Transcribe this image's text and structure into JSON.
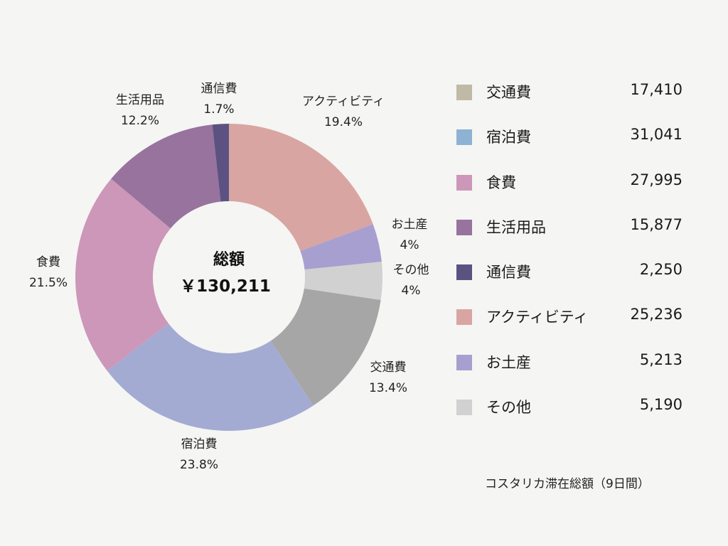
{
  "chart_data": {
    "type": "pie",
    "donut": true,
    "center_title": "総額",
    "center_total": "￥130,211",
    "categories": [
      "交通費",
      "宿泊費",
      "食費",
      "生活用品",
      "通信費",
      "アクティビティ",
      "お土産",
      "その他"
    ],
    "values": [
      17410,
      31041,
      27995,
      15877,
      2250,
      25236,
      5213,
      5190
    ],
    "value_labels": [
      "17,410",
      "31,041",
      "27,995",
      "15,877",
      "2,250",
      "25,236",
      "5,213",
      "5,190"
    ],
    "percent_labels": [
      "13.4%",
      "23.8%",
      "21.5%",
      "12.2%",
      "1.7%",
      "19.4%",
      "4%",
      "4%"
    ],
    "slice_colors": [
      "#a6a6a6",
      "#a3abd3",
      "#cc97b8",
      "#97739d",
      "#5c5282",
      "#d8a5a3",
      "#a79fcf",
      "#d1d1d1"
    ],
    "legend_colors": [
      "#bfb9a6",
      "#8db2d3",
      "#cc97b8",
      "#97739d",
      "#5c5282",
      "#d8a5a3",
      "#a79fcf",
      "#d1d1d1"
    ],
    "legend_position": "right",
    "footnote": "コスタリカ滞在総額（9日間）"
  }
}
